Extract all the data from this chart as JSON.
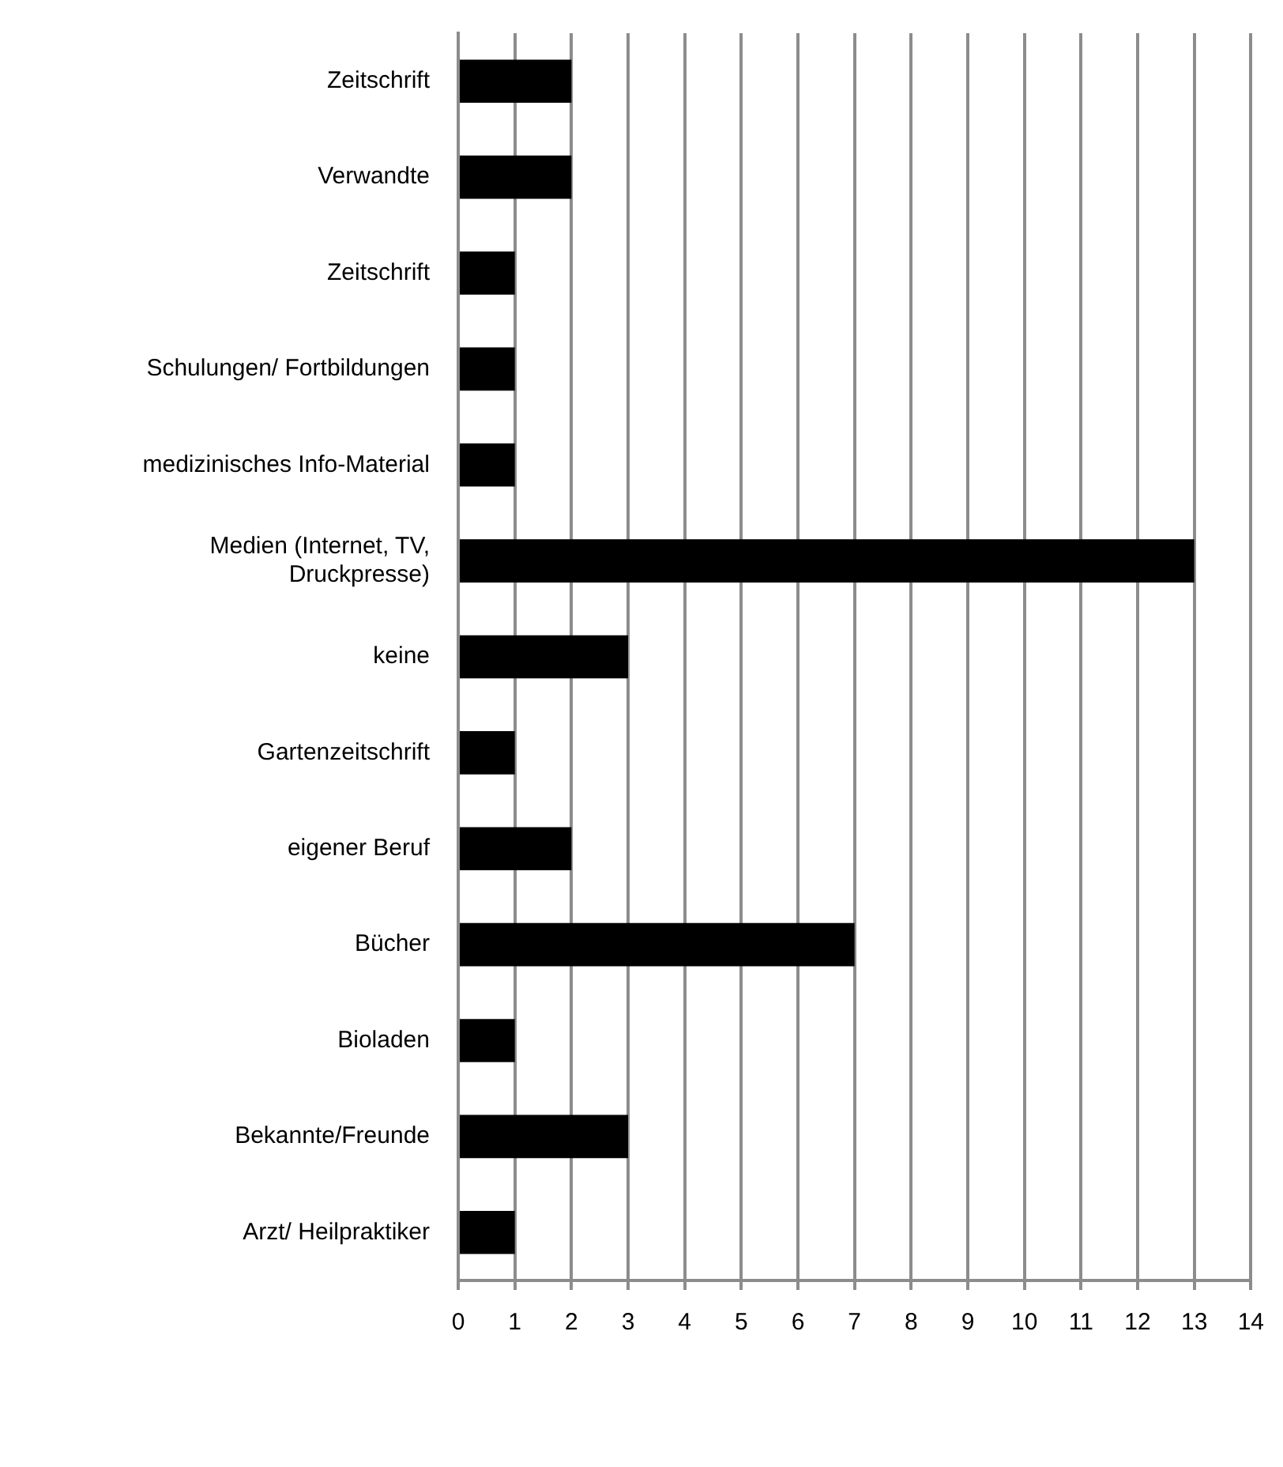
{
  "chart_data": {
    "type": "bar",
    "orientation": "horizontal",
    "categories": [
      "Zeitschrift",
      "Verwandte",
      "Zeitschrift",
      "Schulungen/ Fortbildungen",
      "medizinisches Info-Material",
      "Medien (Internet, TV, Druckpresse)",
      "keine",
      "Gartenzeitschrift",
      "eigener Beruf",
      "Bücher",
      "Bioladen",
      "Bekannte/Freunde",
      "Arzt/ Heilpraktiker"
    ],
    "values": [
      2,
      2,
      1,
      1,
      1,
      13,
      3,
      1,
      2,
      7,
      1,
      3,
      1
    ],
    "color": "#000000",
    "xlim": [
      0,
      14
    ],
    "xticks": [
      0,
      1,
      2,
      3,
      4,
      5,
      6,
      7,
      8,
      9,
      10,
      11,
      12,
      13,
      14
    ],
    "grid": "x",
    "legend": false
  }
}
